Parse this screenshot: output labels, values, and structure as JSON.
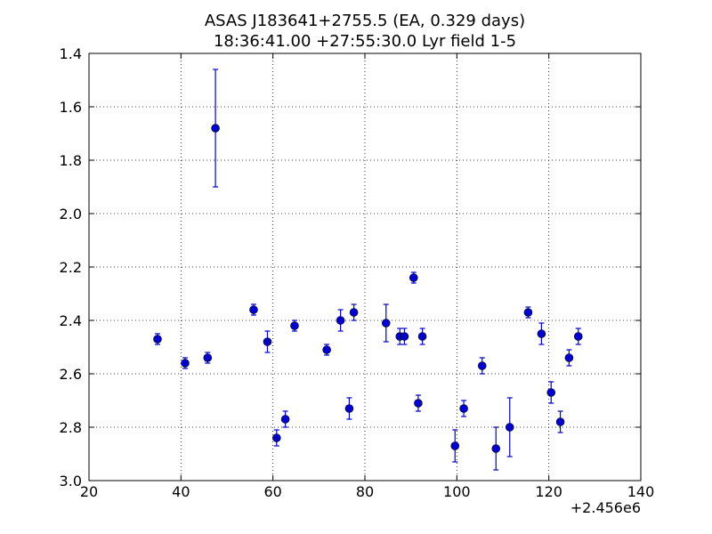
{
  "colors": {
    "series": "#0000cc",
    "axes": "#000000",
    "grid": "#000000",
    "background": "#ffffff"
  },
  "chart_data": {
    "type": "scatter",
    "title": "ASAS J183641+2755.5 (EA, 0.329 days)",
    "subtitle": "18:36:41.00 +27:55:30.0 Lyr field 1-5",
    "xlabel": "",
    "ylabel": "",
    "x_offset_label": "+2.456e6",
    "xlim": [
      20,
      140
    ],
    "ylim": [
      1.4,
      3.0
    ],
    "y_inverted": true,
    "grid": true,
    "xticks": [
      20,
      40,
      60,
      80,
      100,
      120,
      140
    ],
    "xtick_labels": [
      "20",
      "40",
      "60",
      "80",
      "100",
      "120",
      "140"
    ],
    "yticks": [
      1.4,
      1.6,
      1.8,
      2.0,
      2.2,
      2.4,
      2.6,
      2.8,
      3.0
    ],
    "ytick_labels": [
      "1.4",
      "1.6",
      "1.8",
      "2.0",
      "2.2",
      "2.4",
      "2.6",
      "2.8",
      "3.0"
    ],
    "points": [
      {
        "x": 34.9,
        "y": 2.47,
        "err": 0.02
      },
      {
        "x": 40.9,
        "y": 2.56,
        "err": 0.02
      },
      {
        "x": 45.8,
        "y": 2.54,
        "err": 0.02
      },
      {
        "x": 47.5,
        "y": 1.68,
        "err": 0.22
      },
      {
        "x": 55.8,
        "y": 2.36,
        "err": 0.02
      },
      {
        "x": 58.8,
        "y": 2.48,
        "err": 0.04
      },
      {
        "x": 60.8,
        "y": 2.84,
        "err": 0.03
      },
      {
        "x": 62.7,
        "y": 2.77,
        "err": 0.03
      },
      {
        "x": 64.7,
        "y": 2.42,
        "err": 0.02
      },
      {
        "x": 71.7,
        "y": 2.51,
        "err": 0.02
      },
      {
        "x": 74.7,
        "y": 2.4,
        "err": 0.04
      },
      {
        "x": 76.6,
        "y": 2.73,
        "err": 0.04
      },
      {
        "x": 77.6,
        "y": 2.37,
        "err": 0.03
      },
      {
        "x": 84.6,
        "y": 2.41,
        "err": 0.07
      },
      {
        "x": 87.6,
        "y": 2.46,
        "err": 0.03
      },
      {
        "x": 88.6,
        "y": 2.46,
        "err": 0.03
      },
      {
        "x": 90.6,
        "y": 2.24,
        "err": 0.02
      },
      {
        "x": 91.6,
        "y": 2.71,
        "err": 0.03
      },
      {
        "x": 92.5,
        "y": 2.46,
        "err": 0.03
      },
      {
        "x": 99.6,
        "y": 2.87,
        "err": 0.06
      },
      {
        "x": 101.5,
        "y": 2.73,
        "err": 0.03
      },
      {
        "x": 105.5,
        "y": 2.57,
        "err": 0.03
      },
      {
        "x": 108.5,
        "y": 2.88,
        "err": 0.08
      },
      {
        "x": 111.5,
        "y": 2.8,
        "err": 0.11
      },
      {
        "x": 115.5,
        "y": 2.37,
        "err": 0.02
      },
      {
        "x": 118.4,
        "y": 2.45,
        "err": 0.04
      },
      {
        "x": 120.5,
        "y": 2.67,
        "err": 0.04
      },
      {
        "x": 122.5,
        "y": 2.78,
        "err": 0.04
      },
      {
        "x": 124.4,
        "y": 2.54,
        "err": 0.03
      },
      {
        "x": 126.4,
        "y": 2.46,
        "err": 0.03
      }
    ]
  }
}
